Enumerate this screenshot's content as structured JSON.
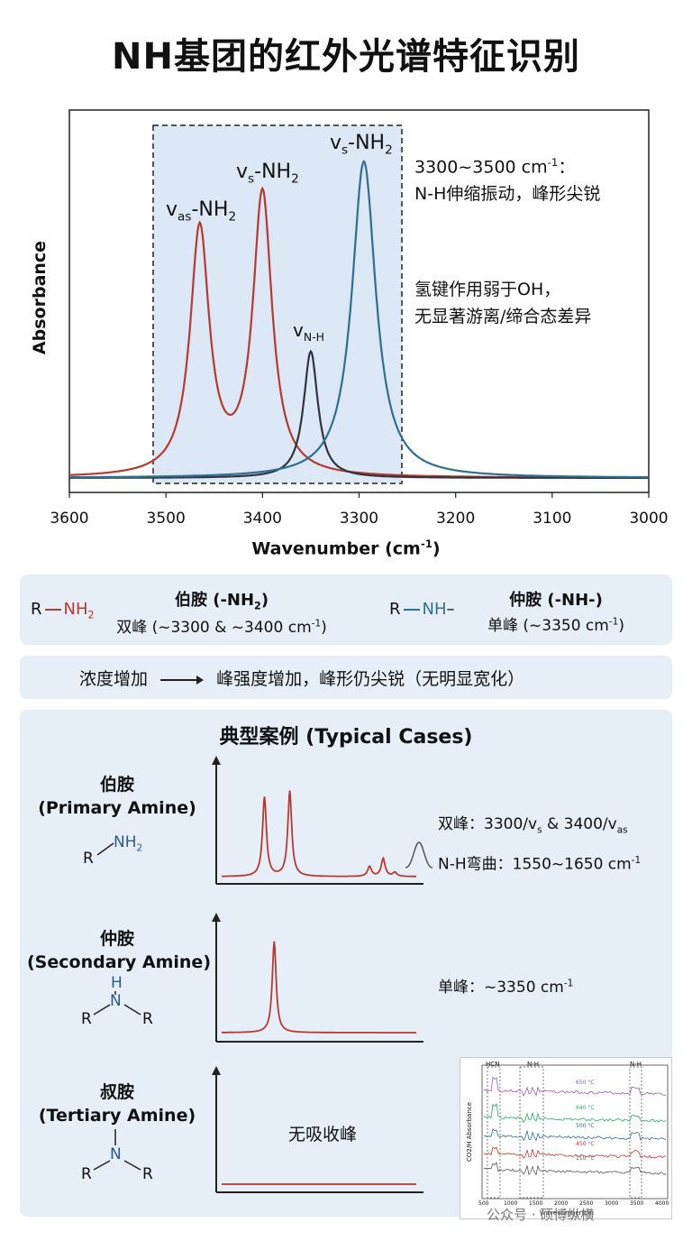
{
  "title": "NH基团的红外光谱特征识别",
  "main_chart": {
    "ylabel": "Absorbance",
    "xlabel": "Wavenumber (cm",
    "xlabel_sup": "-1",
    "xlabel_end": ")",
    "xticks": [
      "3600",
      "3500",
      "3400",
      "3300",
      "3200",
      "3100",
      "3000"
    ],
    "peak_labels": {
      "vas_NH2": {
        "base": "v",
        "sub": "as",
        "tail": "-NH",
        "tail_sub": "2"
      },
      "vs_NH2_red": {
        "base": "v",
        "sub": "s",
        "tail": "-NH",
        "tail_sub": "2"
      },
      "vs_NH2_blue": {
        "base": "v",
        "sub": "s",
        "tail": "-NH",
        "tail_sub": "2"
      },
      "vNH": {
        "base": "v",
        "sub": "N-H"
      }
    },
    "note1_line1": "3300~3500 cm",
    "note1_line1_sup": "-1",
    "note1_line1_end": "：",
    "note1_line2": "N-H伸缩振动，峰形尖锐",
    "note2_line1": "氢键作用弱于OH，",
    "note2_line2": "无显著游离/缔合态差异",
    "colors": {
      "primary": "#b53a2f",
      "secondary": "#333340",
      "blue": "#2e6f93",
      "panel": "#e6eef7"
    }
  },
  "chart_data": [
    {
      "type": "line",
      "title": "NH基团的红外光谱特征识别",
      "xlabel": "Wavenumber (cm-1)",
      "ylabel": "Absorbance",
      "xlim": [
        3600,
        3000
      ],
      "x_reversed": true,
      "grid": false,
      "series": [
        {
          "color": "#b53a2f",
          "peaks": [
            {
              "x": 3465,
              "height": 0.7,
              "width": 12
            },
            {
              "x": 3400,
              "height": 0.8,
              "width": 12
            }
          ]
        },
        {
          "color": "#333340",
          "peaks": [
            {
              "x": 3350,
              "height": 0.36,
              "width": 9
            }
          ]
        },
        {
          "color": "#2e6f93",
          "peaks": [
            {
              "x": 3295,
              "height": 0.9,
              "width": 15
            }
          ]
        }
      ],
      "annotations": [
        "vas-NH2",
        "vs-NH2",
        "vN-H",
        "vs-NH2"
      ]
    },
    {
      "type": "line",
      "title": "伯胺 (Primary Amine)",
      "series": [
        {
          "color": "#b53a2f",
          "peaks": [
            {
              "pos": 0.22,
              "height": 0.8
            },
            {
              "pos": 0.35,
              "height": 0.86
            },
            {
              "pos": 0.76,
              "height": 0.1
            },
            {
              "pos": 0.83,
              "height": 0.18
            },
            {
              "pos": 0.89,
              "height": 0.04
            }
          ]
        }
      ]
    },
    {
      "type": "line",
      "title": "仲胺 (Secondary Amine)",
      "series": [
        {
          "color": "#b53a2f",
          "peaks": [
            {
              "pos": 0.27,
              "height": 0.92
            }
          ]
        }
      ]
    },
    {
      "type": "line",
      "title": "叔胺 (Tertiary Amine)",
      "series": [
        {
          "color": "#b53a2f",
          "peaks": []
        }
      ]
    }
  ],
  "amine_panel": {
    "primary_struct_R": "R",
    "primary_struct_group": "NH",
    "primary_struct_sub": "2",
    "primary_title": "伯胺 (-NH",
    "primary_title_sub": "2",
    "primary_title_end": ")",
    "primary_desc": "双峰 (~3300 & ~3400 cm",
    "primary_desc_sup": "-1",
    "primary_desc_end": ")",
    "secondary_struct_R": "R",
    "secondary_struct_group": "NH",
    "secondary_struct_tail": "–",
    "secondary_title": "仲胺 (-NH-)",
    "secondary_desc": "单峰 (~3350 cm",
    "secondary_desc_sup": "-1",
    "secondary_desc_end": ")"
  },
  "concentration": {
    "left": "浓度增加",
    "right": "峰强度增加，峰形仍尖锐（无明显宽化）"
  },
  "cases": {
    "header": "典型案例 (Typical Cases)",
    "primary_name": "伯胺",
    "primary_en": "(Primary Amine)",
    "primary_struct_R": "R",
    "primary_struct_NH": "NH",
    "primary_struct_sub": "2",
    "primary_note1": "双峰：3300/v",
    "primary_note1_sub1": "s",
    "primary_note1_mid": " & 3400/v",
    "primary_note1_sub2": "as",
    "primary_note2": "N-H弯曲：1550~1650 cm",
    "primary_note2_sup": "-1",
    "secondary_name": "仲胺",
    "secondary_en": "(Secondary Amine)",
    "secondary_struct_H": "H",
    "secondary_struct_N": "N",
    "secondary_struct_R1": "R",
    "secondary_struct_R2": "R",
    "secondary_note": "单峰：~3350 cm",
    "secondary_note_sup": "-1",
    "tertiary_name": "叔胺",
    "tertiary_en": "(Tertiary Amine)",
    "tertiary_struct_N": "N",
    "tertiary_struct_R1": "R",
    "tertiary_struct_R2": "R",
    "tertiary_note": "无吸收峰"
  },
  "inset": {
    "ylabel": "CO2/H Absorbance",
    "xlabel": "Wavenumber(cm",
    "xticks": [
      "500",
      "1000",
      "1500",
      "2000",
      "2500",
      "3000",
      "3500",
      "4000"
    ],
    "box_labels": [
      "HCN",
      "N-H",
      "N-H"
    ],
    "trace_labels": [
      "650 °C",
      "640 °C",
      "500 °C",
      "450 °C",
      "110 °C"
    ],
    "trace_colors": [
      "#9b59b6",
      "#27ae60",
      "#2e6f93",
      "#c0392b",
      "#555555"
    ]
  },
  "watermark": "公众号 · 硕博纵横"
}
